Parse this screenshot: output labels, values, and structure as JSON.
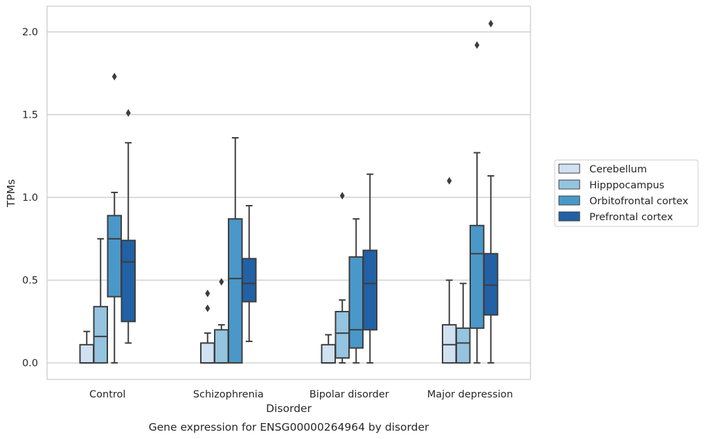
{
  "chart_data": {
    "type": "box",
    "xlabel": "Disorder",
    "ylabel": "TPMs",
    "caption": "Gene expression for ENSG00000264964 by disorder",
    "ylim": [
      -0.1,
      2.155
    ],
    "yticks": [
      0.0,
      0.5,
      1.0,
      1.5,
      2.0
    ],
    "ytick_labels": [
      "0.0",
      "0.5",
      "1.0",
      "1.5",
      "2.0"
    ],
    "grid": "horizontal",
    "legend_placement": "center-right outside",
    "categories": [
      "Control",
      "Schizophrenia",
      "Bipolar disorder",
      "Major depression"
    ],
    "series": [
      {
        "name": "Cerebellum",
        "color": "#d0e1f2",
        "boxes": [
          {
            "whislo": 0.0,
            "q1": 0.0,
            "med": 0.0,
            "q3": 0.11,
            "whishi": 0.19,
            "fliers": []
          },
          {
            "whislo": 0.0,
            "q1": 0.0,
            "med": 0.0,
            "q3": 0.12,
            "whishi": 0.18,
            "fliers": [
              0.33,
              0.42
            ]
          },
          {
            "whislo": 0.0,
            "q1": 0.0,
            "med": 0.0,
            "q3": 0.11,
            "whishi": 0.17,
            "fliers": []
          },
          {
            "whislo": 0.0,
            "q1": 0.0,
            "med": 0.11,
            "q3": 0.23,
            "whishi": 0.5,
            "fliers": [
              1.1
            ]
          }
        ]
      },
      {
        "name": "Hipppocampus",
        "color": "#94c4df",
        "boxes": [
          {
            "whislo": 0.0,
            "q1": 0.0,
            "med": 0.16,
            "q3": 0.34,
            "whishi": 0.75,
            "fliers": []
          },
          {
            "whislo": 0.0,
            "q1": 0.0,
            "med": 0.0,
            "q3": 0.2,
            "whishi": 0.23,
            "fliers": [
              0.49
            ]
          },
          {
            "whislo": 0.0,
            "q1": 0.03,
            "med": 0.18,
            "q3": 0.31,
            "whishi": 0.38,
            "fliers": [
              1.01
            ]
          },
          {
            "whislo": 0.0,
            "q1": 0.0,
            "med": 0.12,
            "q3": 0.21,
            "whishi": 0.48,
            "fliers": []
          }
        ]
      },
      {
        "name": "Orbitofrontal cortex",
        "color": "#4a98c9",
        "boxes": [
          {
            "whislo": 0.0,
            "q1": 0.4,
            "med": 0.75,
            "q3": 0.89,
            "whishi": 1.03,
            "fliers": [
              1.73
            ]
          },
          {
            "whislo": 0.0,
            "q1": 0.0,
            "med": 0.51,
            "q3": 0.87,
            "whishi": 1.36,
            "fliers": []
          },
          {
            "whislo": 0.0,
            "q1": 0.09,
            "med": 0.2,
            "q3": 0.64,
            "whishi": 0.87,
            "fliers": []
          },
          {
            "whislo": 0.0,
            "q1": 0.21,
            "med": 0.66,
            "q3": 0.83,
            "whishi": 1.27,
            "fliers": [
              1.92
            ]
          }
        ]
      },
      {
        "name": "Prefrontal cortex",
        "color": "#2161a5",
        "boxes": [
          {
            "whislo": 0.12,
            "q1": 0.25,
            "med": 0.61,
            "q3": 0.74,
            "whishi": 1.33,
            "fliers": [
              1.51
            ]
          },
          {
            "whislo": 0.13,
            "q1": 0.37,
            "med": 0.48,
            "q3": 0.63,
            "whishi": 0.95,
            "fliers": []
          },
          {
            "whislo": 0.0,
            "q1": 0.2,
            "med": 0.48,
            "q3": 0.68,
            "whishi": 1.14,
            "fliers": []
          },
          {
            "whislo": 0.0,
            "q1": 0.29,
            "med": 0.47,
            "q3": 0.66,
            "whishi": 1.13,
            "fliers": [
              2.05
            ]
          }
        ]
      }
    ]
  }
}
